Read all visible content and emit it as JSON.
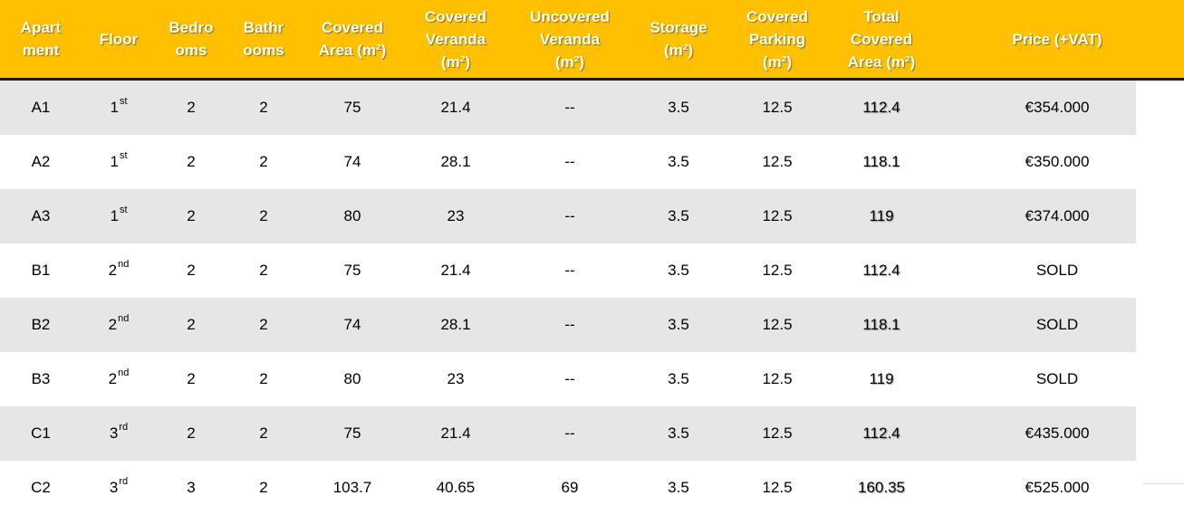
{
  "headers": [
    [
      "Apart",
      "ment"
    ],
    [
      "Floor"
    ],
    [
      "Bedro",
      "oms"
    ],
    [
      "Bathr",
      "ooms"
    ],
    [
      "Covered",
      "Area (m²)"
    ],
    [
      "Covered",
      "Veranda",
      "(m²)"
    ],
    [
      "Uncovered",
      "Veranda",
      "(m²)"
    ],
    [
      "Storage",
      "(m²)"
    ],
    [
      "Covered",
      "Parking",
      "(m²)"
    ],
    [
      "Total",
      "Covered",
      "Area (m²)"
    ],
    [
      "Price (+VAT)"
    ]
  ],
  "rows": [
    {
      "apartment": "A1",
      "floor_num": "1",
      "floor_sup": "st",
      "bedrooms": "2",
      "bathrooms": "2",
      "covered_area": "75",
      "covered_veranda": "21.4",
      "uncovered_veranda": "--",
      "storage": "3.5",
      "covered_parking": "12.5",
      "total": "112.4",
      "price": "€354.000"
    },
    {
      "apartment": "A2",
      "floor_num": "1",
      "floor_sup": "st",
      "bedrooms": "2",
      "bathrooms": "2",
      "covered_area": "74",
      "covered_veranda": "28.1",
      "uncovered_veranda": "--",
      "storage": "3.5",
      "covered_parking": "12.5",
      "total": "118.1",
      "price": "€350.000"
    },
    {
      "apartment": "A3",
      "floor_num": "1",
      "floor_sup": "st",
      "bedrooms": "2",
      "bathrooms": "2",
      "covered_area": "80",
      "covered_veranda": "23",
      "uncovered_veranda": "--",
      "storage": "3.5",
      "covered_parking": "12.5",
      "total": "119",
      "price": "€374.000"
    },
    {
      "apartment": "B1",
      "floor_num": "2",
      "floor_sup": "nd",
      "bedrooms": "2",
      "bathrooms": "2",
      "covered_area": "75",
      "covered_veranda": "21.4",
      "uncovered_veranda": "--",
      "storage": "3.5",
      "covered_parking": "12.5",
      "total": "112.4",
      "price": "SOLD"
    },
    {
      "apartment": "B2",
      "floor_num": "2",
      "floor_sup": "nd",
      "bedrooms": "2",
      "bathrooms": "2",
      "covered_area": "74",
      "covered_veranda": "28.1",
      "uncovered_veranda": "--",
      "storage": "3.5",
      "covered_parking": "12.5",
      "total": "118.1",
      "price": "SOLD"
    },
    {
      "apartment": "B3",
      "floor_num": "2",
      "floor_sup": "nd",
      "bedrooms": "2",
      "bathrooms": "2",
      "covered_area": "80",
      "covered_veranda": "23",
      "uncovered_veranda": "--",
      "storage": "3.5",
      "covered_parking": "12.5",
      "total": "119",
      "price": "SOLD"
    },
    {
      "apartment": "C1",
      "floor_num": "3",
      "floor_sup": "rd",
      "bedrooms": "2",
      "bathrooms": "2",
      "covered_area": "75",
      "covered_veranda": "21.4",
      "uncovered_veranda": "--",
      "storage": "3.5",
      "covered_parking": "12.5",
      "total": "112.4",
      "price": "€435.000"
    },
    {
      "apartment": "C2",
      "floor_num": "3",
      "floor_sup": "rd",
      "bedrooms": "3",
      "bathrooms": "2",
      "covered_area": "103.7",
      "covered_veranda": "40.65",
      "uncovered_veranda": "69",
      "storage": "3.5",
      "covered_parking": "12.5",
      "total": "160.35",
      "price": "€525.000"
    }
  ],
  "colors": {
    "header_bg": "#FFC000",
    "header_text": "#FFFFFF",
    "row_shade": "#E6E6E6",
    "row_plain": "#FFFFFF",
    "header_rule": "#1A1A1A"
  }
}
